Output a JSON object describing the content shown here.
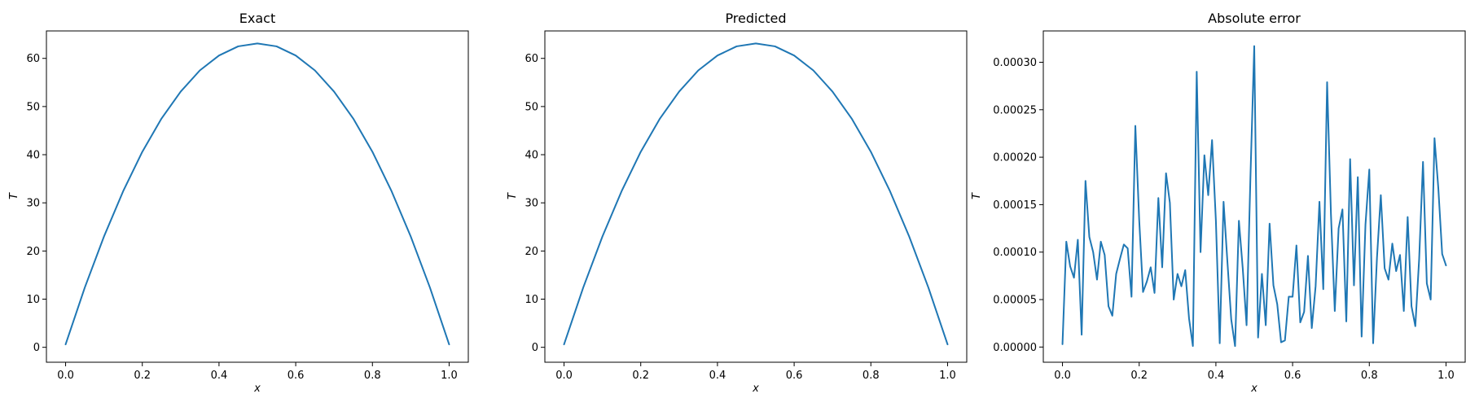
{
  "figure": {
    "background": "#ffffff",
    "line_color": "#1f77b4"
  },
  "chart_data": [
    {
      "type": "line",
      "title": "Exact",
      "xlabel": "x",
      "ylabel": "T",
      "xlim": [
        -0.05,
        1.05
      ],
      "ylim": [
        -3.1,
        65.7
      ],
      "xticks": [
        0.0,
        0.2,
        0.4,
        0.6,
        0.8,
        1.0
      ],
      "xtick_labels": [
        "0.0",
        "0.2",
        "0.4",
        "0.6",
        "0.8",
        "1.0"
      ],
      "yticks": [
        0,
        10,
        20,
        30,
        40,
        50,
        60
      ],
      "ytick_labels": [
        "0",
        "10",
        "20",
        "30",
        "40",
        "50",
        "60"
      ],
      "grid": false,
      "series": [
        {
          "color": "#1f77b4",
          "x": [
            0.0,
            0.05,
            0.1,
            0.15,
            0.2,
            0.25,
            0.3,
            0.35,
            0.4,
            0.45,
            0.5,
            0.55,
            0.6,
            0.65,
            0.7,
            0.75,
            0.8,
            0.85,
            0.9,
            0.95,
            1.0
          ],
          "y": [
            0.6,
            12.4,
            23.0,
            32.4,
            40.6,
            47.5,
            53.1,
            57.5,
            60.6,
            62.5,
            63.1,
            62.5,
            60.6,
            57.5,
            53.1,
            47.5,
            40.6,
            32.4,
            23.0,
            12.4,
            0.6
          ]
        }
      ]
    },
    {
      "type": "line",
      "title": "Predicted",
      "xlabel": "x",
      "ylabel": "T",
      "xlim": [
        -0.05,
        1.05
      ],
      "ylim": [
        -3.1,
        65.7
      ],
      "xticks": [
        0.0,
        0.2,
        0.4,
        0.6,
        0.8,
        1.0
      ],
      "xtick_labels": [
        "0.0",
        "0.2",
        "0.4",
        "0.6",
        "0.8",
        "1.0"
      ],
      "yticks": [
        0,
        10,
        20,
        30,
        40,
        50,
        60
      ],
      "ytick_labels": [
        "0",
        "10",
        "20",
        "30",
        "40",
        "50",
        "60"
      ],
      "grid": false,
      "series": [
        {
          "color": "#1f77b4",
          "x": [
            0.0,
            0.05,
            0.1,
            0.15,
            0.2,
            0.25,
            0.3,
            0.35,
            0.4,
            0.45,
            0.5,
            0.55,
            0.6,
            0.65,
            0.7,
            0.75,
            0.8,
            0.85,
            0.9,
            0.95,
            1.0
          ],
          "y": [
            0.6,
            12.4,
            23.0,
            32.4,
            40.6,
            47.5,
            53.1,
            57.5,
            60.6,
            62.5,
            63.1,
            62.5,
            60.6,
            57.5,
            53.1,
            47.5,
            40.6,
            32.4,
            23.0,
            12.4,
            0.6
          ]
        }
      ]
    },
    {
      "type": "line",
      "title": "Absolute error",
      "xlabel": "x",
      "ylabel": "T",
      "xlim": [
        -0.05,
        1.05
      ],
      "ylim": [
        -1.6e-05,
        0.000333
      ],
      "xticks": [
        0.0,
        0.2,
        0.4,
        0.6,
        0.8,
        1.0
      ],
      "xtick_labels": [
        "0.0",
        "0.2",
        "0.4",
        "0.6",
        "0.8",
        "1.0"
      ],
      "yticks": [
        0.0,
        5e-05,
        0.0001,
        0.00015,
        0.0002,
        0.00025,
        0.0003
      ],
      "ytick_labels": [
        "0.00000",
        "0.00005",
        "0.00010",
        "0.00015",
        "0.00020",
        "0.00025",
        "0.00030"
      ],
      "grid": false,
      "series": [
        {
          "color": "#1f77b4",
          "x": [
            0.0,
            0.01,
            0.02,
            0.03,
            0.04,
            0.05,
            0.06,
            0.07,
            0.08,
            0.09,
            0.1,
            0.11,
            0.12,
            0.13,
            0.14,
            0.15,
            0.16,
            0.17,
            0.18,
            0.19,
            0.2,
            0.21,
            0.22,
            0.23,
            0.24,
            0.25,
            0.26,
            0.27,
            0.28,
            0.29,
            0.3,
            0.31,
            0.32,
            0.33,
            0.34,
            0.35,
            0.36,
            0.37,
            0.38,
            0.39,
            0.4,
            0.41,
            0.42,
            0.43,
            0.44,
            0.45,
            0.46,
            0.47,
            0.48,
            0.49,
            0.5,
            0.51,
            0.52,
            0.53,
            0.54,
            0.55,
            0.56,
            0.57,
            0.58,
            0.59,
            0.6,
            0.61,
            0.62,
            0.63,
            0.64,
            0.65,
            0.66,
            0.67,
            0.68,
            0.69,
            0.7,
            0.71,
            0.72,
            0.73,
            0.74,
            0.75,
            0.76,
            0.77,
            0.78,
            0.79,
            0.8,
            0.81,
            0.82,
            0.83,
            0.84,
            0.85,
            0.86,
            0.87,
            0.88,
            0.89,
            0.9,
            0.91,
            0.92,
            0.93,
            0.94,
            0.95,
            0.96,
            0.97,
            0.98,
            0.99,
            1.0
          ],
          "y": [
            3e-06,
            0.000111,
            8.5e-05,
            7.3e-05,
            0.000113,
            1.3e-05,
            0.000175,
            0.000116,
            0.0001,
            7.1e-05,
            0.000111,
            9.7e-05,
            4.3e-05,
            3.3e-05,
            7.7e-05,
            9.3e-05,
            0.000108,
            0.000104,
            5.3e-05,
            0.000233,
            0.000134,
            5.8e-05,
            6.9e-05,
            8.4e-05,
            5.7e-05,
            0.000157,
            8.4e-05,
            0.000183,
            0.000152,
            5e-05,
            7.7e-05,
            6.4e-05,
            8.1e-05,
            3e-05,
            1e-06,
            0.00029,
            0.0001,
            0.000202,
            0.00016,
            0.000218,
            0.000133,
            4e-06,
            0.000153,
            9e-05,
            2.9e-05,
            1e-06,
            0.000133,
            8.3e-05,
            2.3e-05,
            0.000178,
            0.000317,
            1e-05,
            7.7e-05,
            2.3e-05,
            0.00013,
            6.5e-05,
            4.5e-05,
            5e-06,
            7e-06,
            5.3e-05,
            5.3e-05,
            0.000107,
            2.6e-05,
            3.7e-05,
            9.6e-05,
            2e-05,
            6.4e-05,
            0.000153,
            6.1e-05,
            0.000279,
            0.00014,
            3.8e-05,
            0.000125,
            0.000145,
            2.7e-05,
            0.000198,
            6.5e-05,
            0.000179,
            1.1e-05,
            0.000129,
            0.000187,
            4e-06,
            9.4e-05,
            0.00016,
            8.3e-05,
            7.1e-05,
            0.000109,
            8e-05,
            9.7e-05,
            3.8e-05,
            0.000137,
            4.3e-05,
            2.2e-05,
            9.3e-05,
            0.000195,
            6.7e-05,
            5e-05,
            0.00022,
            0.000167,
            9.8e-05,
            8.6e-05
          ]
        }
      ]
    }
  ]
}
